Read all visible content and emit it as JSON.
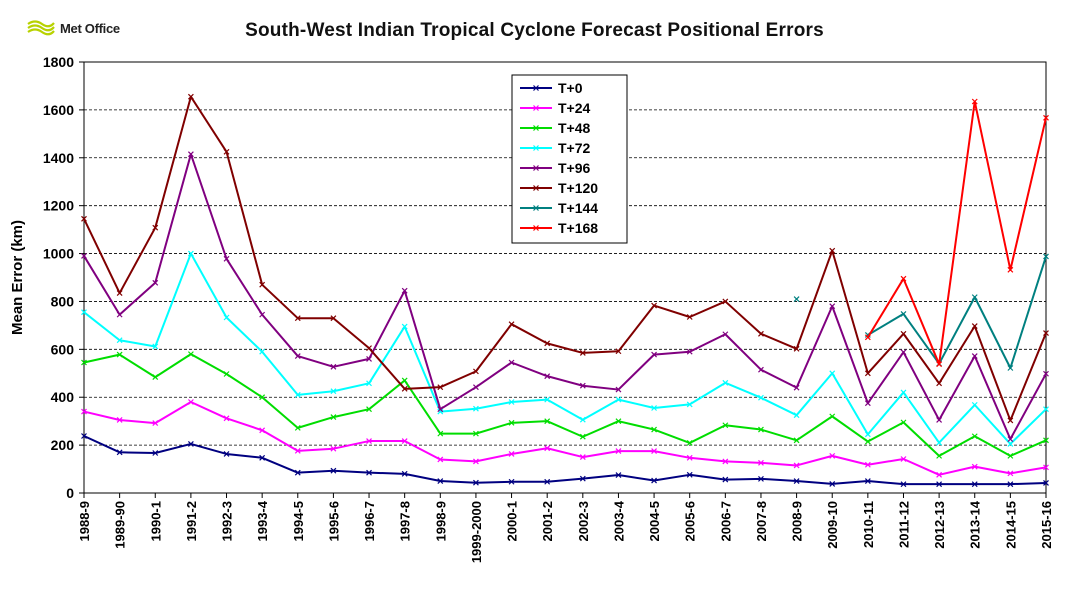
{
  "header": {
    "logo_text": "Met Office",
    "title": "South-West  Indian Tropical Cyclone Forecast Positional Errors"
  },
  "chart_data": {
    "type": "line",
    "title": "South-West  Indian Tropical Cyclone Forecast Positional Errors",
    "xlabel": "",
    "ylabel": "Mean Error (km)",
    "ylim": [
      0,
      1800
    ],
    "yticks": [
      0,
      200,
      400,
      600,
      800,
      1000,
      1200,
      1400,
      1600,
      1800
    ],
    "grid": true,
    "legend_position": "top-center",
    "categories": [
      "1988-9",
      "1989-90",
      "1990-1",
      "1991-2",
      "1992-3",
      "1993-4",
      "1994-5",
      "1995-6",
      "1996-7",
      "1997-8",
      "1998-9",
      "1999-2000",
      "2000-1",
      "2001-2",
      "2002-3",
      "2003-4",
      "2004-5",
      "2005-6",
      "2006-7",
      "2007-8",
      "2008-9",
      "2009-10",
      "2010-11",
      "2011-12",
      "2012-13",
      "2013-14",
      "2014-15",
      "2015-16"
    ],
    "series": [
      {
        "name": "T+0",
        "color": "#000080",
        "values": [
          238,
          170,
          167,
          205,
          163,
          147,
          85,
          93,
          85,
          80,
          50,
          43,
          47,
          47,
          60,
          75,
          52,
          76,
          56,
          59,
          50,
          38,
          50,
          37,
          37,
          37,
          37,
          42
        ]
      },
      {
        "name": "T+24",
        "color": "#ff00ff",
        "values": [
          340,
          305,
          292,
          380,
          312,
          262,
          176,
          185,
          217,
          217,
          140,
          132,
          163,
          187,
          150,
          175,
          175,
          147,
          132,
          126,
          115,
          155,
          118,
          142,
          76,
          110,
          82,
          107
        ]
      },
      {
        "name": "T+48",
        "color": "#00dd00",
        "values": [
          545,
          578,
          484,
          580,
          497,
          400,
          272,
          317,
          350,
          470,
          248,
          248,
          293,
          300,
          235,
          300,
          265,
          209,
          283,
          265,
          220,
          320,
          215,
          295,
          155,
          237,
          155,
          220
        ]
      },
      {
        "name": "T+72",
        "color": "#00ffff",
        "values": [
          755,
          638,
          612,
          1000,
          733,
          590,
          410,
          425,
          458,
          695,
          340,
          352,
          380,
          390,
          306,
          390,
          355,
          370,
          460,
          398,
          325,
          500,
          245,
          420,
          210,
          368,
          205,
          350
        ]
      },
      {
        "name": "T+96",
        "color": "#800080",
        "values": [
          990,
          745,
          878,
          1415,
          978,
          745,
          572,
          527,
          560,
          845,
          350,
          442,
          545,
          488,
          448,
          432,
          578,
          590,
          663,
          515,
          440,
          780,
          375,
          588,
          305,
          572,
          225,
          498
        ]
      },
      {
        "name": "T+120",
        "color": "#800000",
        "values": [
          1145,
          835,
          1108,
          1655,
          1425,
          870,
          730,
          730,
          605,
          435,
          442,
          508,
          705,
          625,
          585,
          592,
          783,
          735,
          800,
          665,
          602,
          1012,
          500,
          665,
          458,
          697,
          303,
          668
        ]
      },
      {
        "name": "T+144",
        "color": "#008080",
        "values": [
          null,
          null,
          null,
          null,
          null,
          null,
          null,
          null,
          null,
          null,
          null,
          null,
          null,
          null,
          null,
          null,
          null,
          null,
          null,
          null,
          810,
          null,
          660,
          748,
          540,
          818,
          522,
          988
        ]
      },
      {
        "name": "T+168",
        "color": "#ff0000",
        "values": [
          null,
          null,
          null,
          null,
          null,
          null,
          null,
          null,
          null,
          null,
          null,
          null,
          null,
          null,
          null,
          null,
          null,
          null,
          null,
          null,
          null,
          null,
          650,
          895,
          538,
          1635,
          932,
          1567
        ]
      }
    ]
  }
}
